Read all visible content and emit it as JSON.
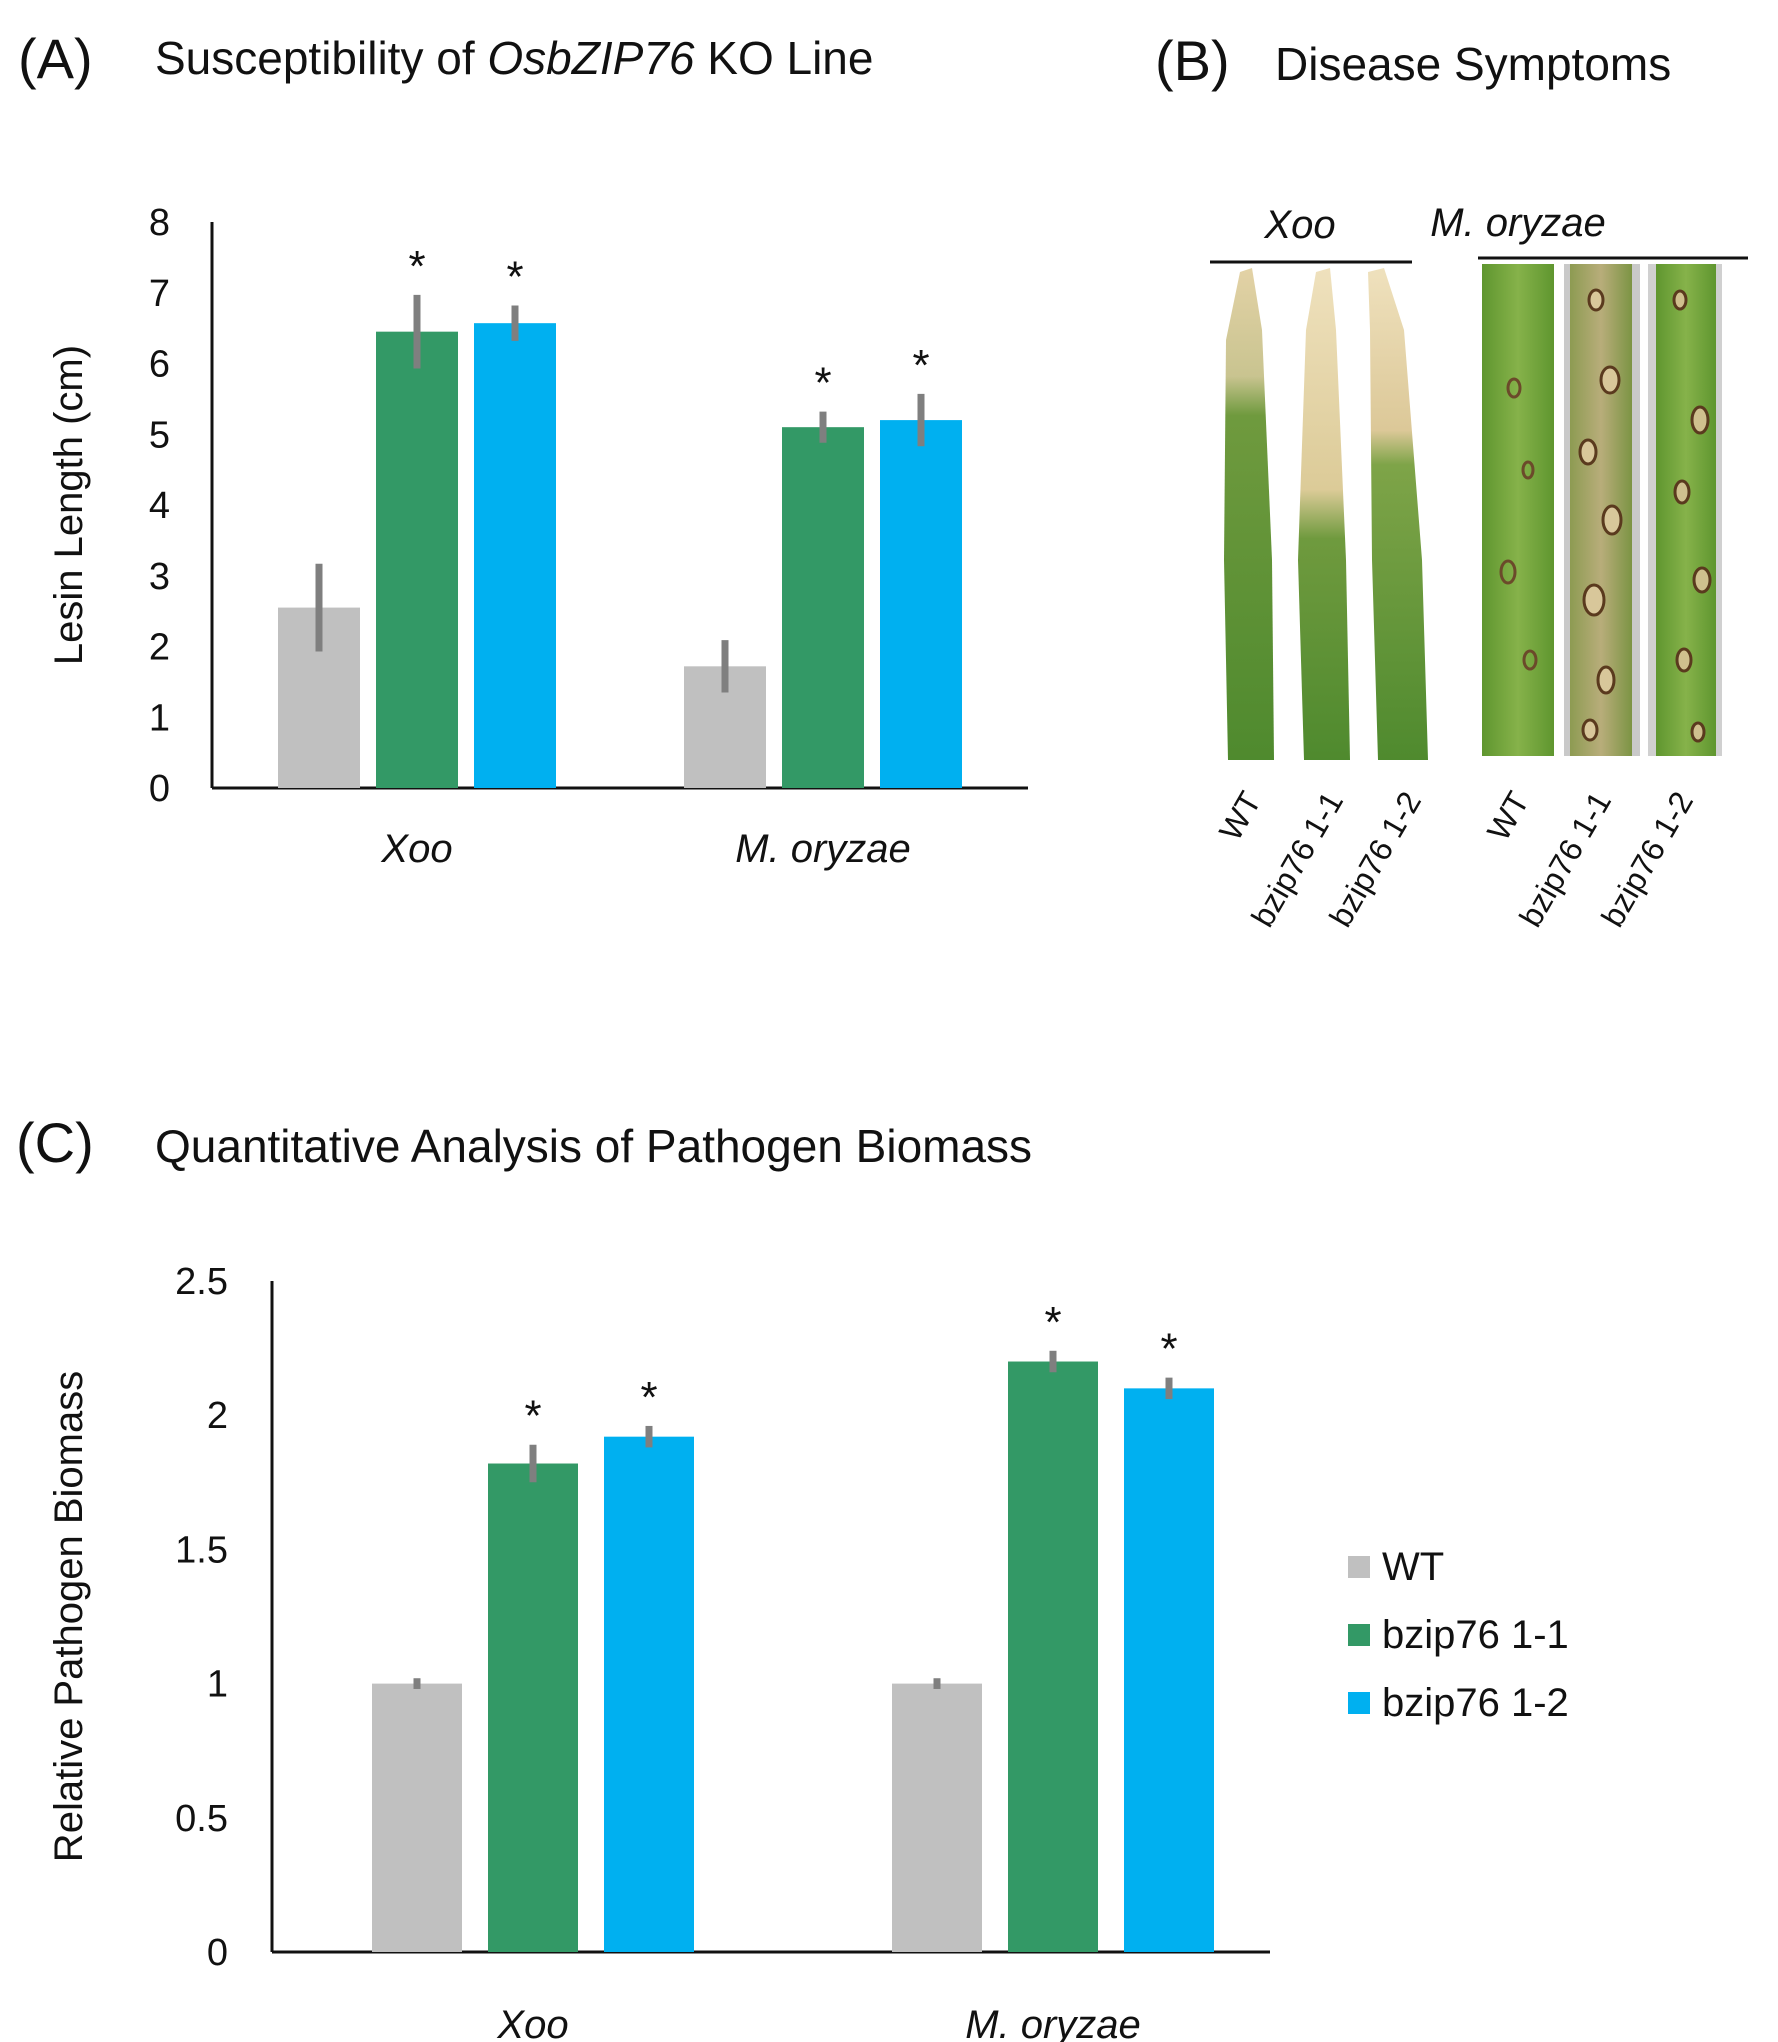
{
  "panel_a": {
    "letter": "(A)",
    "title_pre": "Susceptibility of ",
    "title_gene": "OsbZIP76",
    "title_post": " KO Line"
  },
  "panel_b": {
    "letter": "(B)",
    "title": "Disease Symptoms",
    "groups": [
      {
        "label": "Xoo",
        "leaves": [
          "WT",
          "bzip76 1-1",
          "bzip76 1-2"
        ]
      },
      {
        "label": "M. oryzae",
        "leaves": [
          "WT",
          "bzip76 1-1",
          "bzip76 1-2"
        ]
      }
    ]
  },
  "panel_c": {
    "letter": "(C)",
    "title": "Quantitative Analysis of Pathogen Biomass"
  },
  "legend": [
    {
      "name": "WT",
      "color": "#c0c0c0"
    },
    {
      "name": "bzip76 1-1",
      "color": "#339966"
    },
    {
      "name": "bzip76 1-2",
      "color": "#00b0f0"
    }
  ],
  "colors": {
    "wt": "#c0c0c0",
    "ko1": "#339966",
    "ko2": "#00b0f0",
    "error": "#7f7f7f"
  },
  "chart_data": [
    {
      "id": "A",
      "type": "bar",
      "title": "Susceptibility of OsbZIP76 KO Line",
      "xlabel": "",
      "ylabel": "Lesin Length (cm)",
      "ylim": [
        0,
        8
      ],
      "yticks": [
        "0",
        "1",
        "2",
        "3",
        "4",
        "5",
        "6",
        "7",
        "8"
      ],
      "categories": [
        "Xoo",
        "M. oryzae"
      ],
      "series": [
        {
          "name": "WT",
          "values": [
            2.55,
            1.72
          ],
          "errors": [
            0.62,
            0.37
          ],
          "sig": [
            "",
            ""
          ]
        },
        {
          "name": "bzip76 1-1",
          "values": [
            6.45,
            5.1
          ],
          "errors": [
            0.52,
            0.22
          ],
          "sig": [
            "*",
            "*"
          ]
        },
        {
          "name": "bzip76 1-2",
          "values": [
            6.57,
            5.2
          ],
          "errors": [
            0.25,
            0.37
          ],
          "sig": [
            "*",
            "*"
          ]
        }
      ]
    },
    {
      "id": "C",
      "type": "bar",
      "title": "Quantitative Analysis of Pathogen Biomass",
      "xlabel": "",
      "ylabel": "Relative Pathogen Biomass",
      "ylim": [
        0,
        2.5
      ],
      "yticks": [
        "0",
        "0.5",
        "1",
        "1.5",
        "2",
        "2.5"
      ],
      "categories": [
        "Xoo",
        "M. oryzae"
      ],
      "series": [
        {
          "name": "WT",
          "values": [
            1.0,
            1.0
          ],
          "errors": [
            0.02,
            0.02
          ],
          "sig": [
            "",
            ""
          ]
        },
        {
          "name": "bzip76 1-1",
          "values": [
            1.82,
            2.2
          ],
          "errors": [
            0.07,
            0.04
          ],
          "sig": [
            "*",
            "*"
          ]
        },
        {
          "name": "bzip76 1-2",
          "values": [
            1.92,
            2.1
          ],
          "errors": [
            0.04,
            0.04
          ],
          "sig": [
            "*",
            "*"
          ]
        }
      ]
    }
  ]
}
